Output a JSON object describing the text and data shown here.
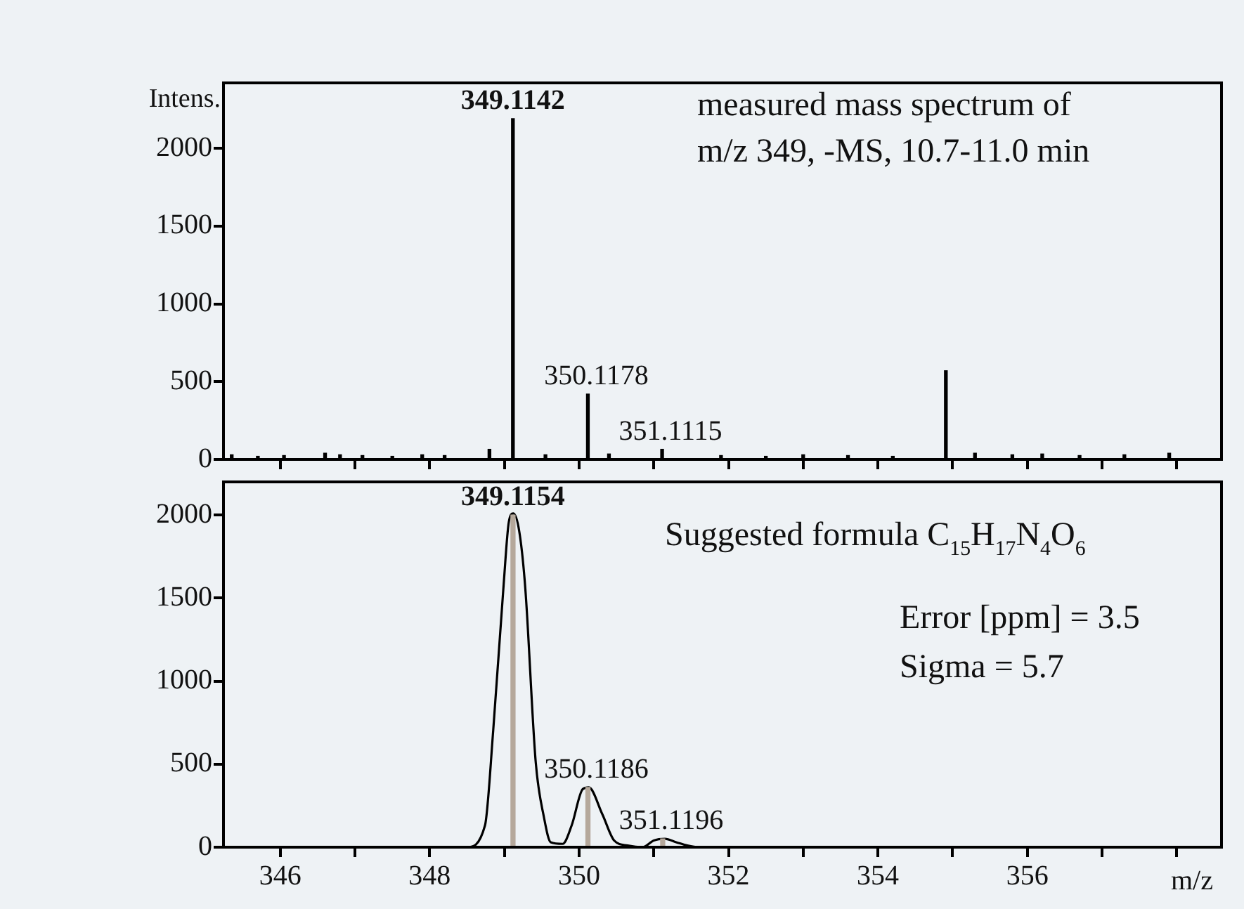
{
  "chart_data": [
    {
      "type": "bar",
      "ylabel": "Intens.",
      "xlim": [
        345.24,
        358.6
      ],
      "ylim": [
        0,
        2420
      ],
      "xticks": [
        {
          "value": 346,
          "label": null
        },
        {
          "value": 347,
          "label": null
        },
        {
          "value": 348,
          "label": null
        },
        {
          "value": 349,
          "label": null
        },
        {
          "value": 350,
          "label": null
        },
        {
          "value": 351,
          "label": null
        },
        {
          "value": 352,
          "label": null
        },
        {
          "value": 353,
          "label": null
        },
        {
          "value": 354,
          "label": null
        },
        {
          "value": 355,
          "label": null
        },
        {
          "value": 356,
          "label": null
        },
        {
          "value": 357,
          "label": null
        },
        {
          "value": 358,
          "label": null
        }
      ],
      "yticks": [
        0,
        500,
        1000,
        1500,
        2000
      ],
      "tick_labels": "y",
      "grid": false,
      "legend": false,
      "series": [
        {
          "color": "#000000",
          "x": [
            345.35,
            345.7,
            346.05,
            346.6,
            346.8,
            347.1,
            347.5,
            347.9,
            348.2,
            348.8,
            349.1142,
            349.55,
            350.1178,
            350.4,
            351.1115,
            351.9,
            352.5,
            353.0,
            353.6,
            354.2,
            354.91,
            355.3,
            355.8,
            356.2,
            356.7,
            357.3,
            357.9
          ],
          "values": [
            30,
            20,
            25,
            40,
            30,
            25,
            20,
            30,
            25,
            65,
            2190,
            30,
            420,
            35,
            65,
            25,
            20,
            30,
            25,
            20,
            570,
            40,
            30,
            35,
            25,
            30,
            40
          ]
        }
      ],
      "annotations": [
        {
          "text": "349.1142",
          "x": 349.1142,
          "y": 2190
        },
        {
          "text": "350.1178",
          "x": 350.1178,
          "y": 420
        },
        {
          "text": "351.1115",
          "x": 351.1115,
          "y": 65
        },
        "measured mass spectrum of\nm/z 349, -MS, 10.7-11.0 min"
      ]
    },
    {
      "type": "line",
      "xlabel": "m/z",
      "xlim": [
        345.24,
        358.6
      ],
      "ylim": [
        0,
        2200
      ],
      "xticks": [
        346,
        {
          "value": 347,
          "label": null
        },
        348,
        {
          "value": 349,
          "label": null
        },
        350,
        {
          "value": 351,
          "label": null
        },
        352,
        {
          "value": 353,
          "label": null
        },
        354,
        {
          "value": 355,
          "label": null
        },
        356,
        {
          "value": 357,
          "label": null
        },
        {
          "value": 358,
          "label": null
        }
      ],
      "yticks": [
        0,
        500,
        1000,
        1500,
        2000
      ],
      "grid": false,
      "legend": false,
      "series": [
        {
          "type": "line",
          "color": "#000000",
          "x": [
            345.24,
            348.5,
            348.74,
            348.85,
            348.99,
            349.06,
            349.12,
            349.2,
            349.28,
            349.42,
            349.53,
            349.62,
            349.78,
            349.9,
            350.05,
            350.13,
            350.31,
            350.47,
            350.65,
            350.85,
            351.0,
            351.15,
            351.3,
            351.45,
            351.6,
            358.6
          ],
          "values": [
            0,
            0,
            130,
            700,
            1580,
            1960,
            2010,
            1900,
            1560,
            510,
            180,
            30,
            20,
            130,
            350,
            360,
            200,
            40,
            10,
            0,
            40,
            50,
            30,
            10,
            0,
            0
          ]
        },
        {
          "type": "bar",
          "color": "#b5a89b",
          "x": [
            349.1154,
            350.1186,
            351.1196
          ],
          "values": [
            2000,
            360,
            50
          ]
        }
      ],
      "annotations": [
        {
          "text": "349.1154",
          "x": 349.1154,
          "y": 2000
        },
        {
          "text": "350.1186",
          "x": 350.1186,
          "y": 360
        },
        {
          "text": "351.1196",
          "x": 351.1196,
          "y": 50
        },
        "Suggested formula C$_{15}$H$_{17}$N$_{4}$O$_{6}$",
        "Error [ppm] = 3.5",
        "Sigma = 5.7"
      ]
    }
  ]
}
